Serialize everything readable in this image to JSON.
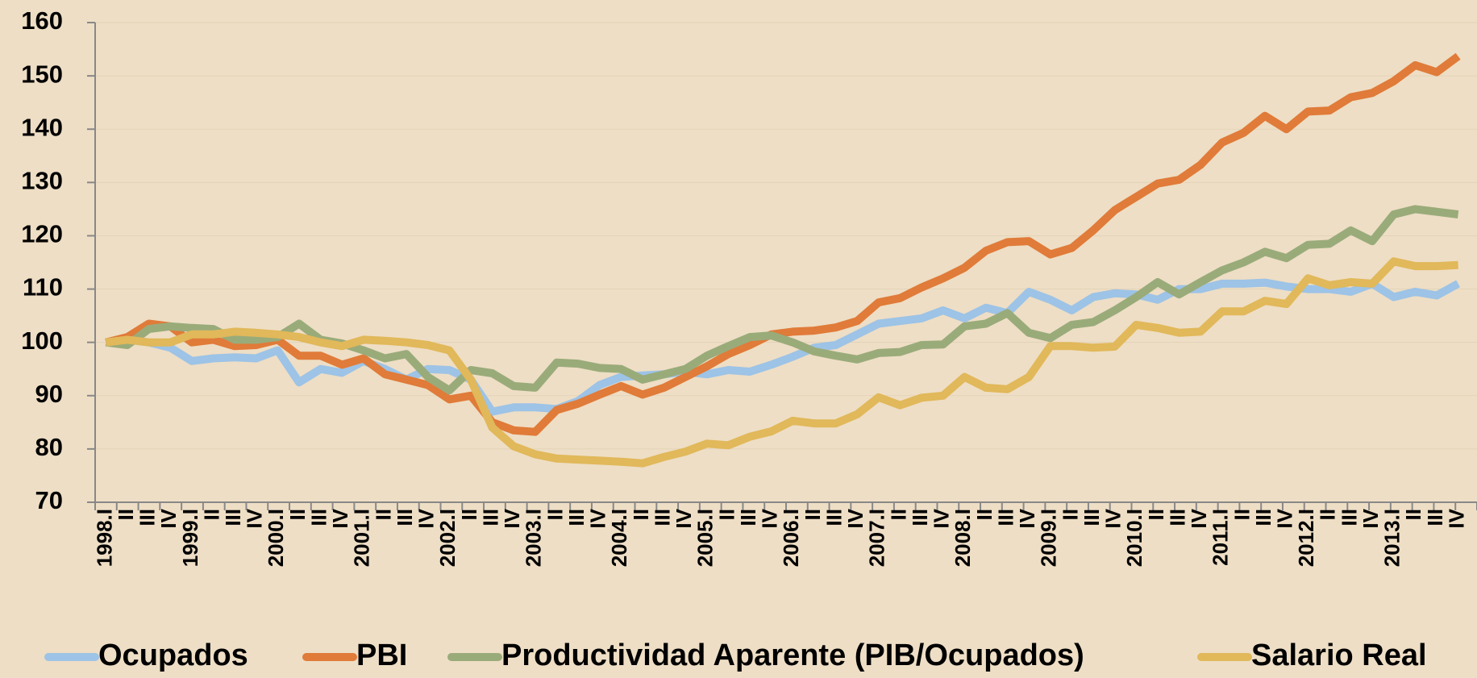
{
  "chart_data": {
    "type": "line",
    "categories": [
      "1998.I",
      "II",
      "III",
      "IV",
      "1999.I",
      "II",
      "III",
      "IV",
      "2000.I",
      "II",
      "III",
      "IV",
      "2001.I",
      "II",
      "III",
      "IV",
      "2002.I",
      "II",
      "III",
      "IV",
      "2003.I",
      "II",
      "III",
      "IV",
      "2004.I",
      "II",
      "III",
      "IV",
      "2005.I",
      "II",
      "III",
      "IV",
      "2006.I",
      "II",
      "III",
      "IV",
      "2007.I",
      "II",
      "III",
      "IV",
      "2008.I",
      "II",
      "III",
      "IV",
      "2009.I",
      "II",
      "III",
      "IV",
      "2010.I",
      "II",
      "III",
      "IV",
      "2011.I",
      "II",
      "III",
      "IV",
      "2012.I",
      "II",
      "III",
      "IV",
      "2013.I",
      "II",
      "III",
      "IV"
    ],
    "series": [
      {
        "name": "Ocupados",
        "color": "#9dc3e6",
        "values": [
          100,
          100.5,
          100,
          99,
          96.5,
          97,
          97.2,
          97,
          98.5,
          92.5,
          95,
          94.3,
          96.5,
          95,
          93,
          95,
          94.8,
          93,
          87,
          87.8,
          87.8,
          87.5,
          89,
          92,
          93.5,
          93.8,
          94,
          94.5,
          94,
          94.8,
          94.5,
          95.8,
          97.3,
          99,
          99.5,
          101.5,
          103.5,
          104,
          104.5,
          106,
          104.5,
          106.5,
          105.5,
          109.5,
          108,
          106,
          108.5,
          109.2,
          109,
          108,
          110,
          110,
          111,
          111,
          111.2,
          110.5,
          110,
          110,
          109.5,
          111,
          108.5,
          109.5,
          108.8,
          111
        ]
      },
      {
        "name": "PBI",
        "color": "#e07b39",
        "values": [
          100,
          101,
          103.5,
          103,
          100,
          100.5,
          99.3,
          99.5,
          100.5,
          97.5,
          97.5,
          95.8,
          97,
          94,
          93,
          92,
          89.3,
          90,
          85,
          83.5,
          83.2,
          87.3,
          88.5,
          90.2,
          91.8,
          90.2,
          91.5,
          93.5,
          95.5,
          97.8,
          99.5,
          101.5,
          102,
          102.2,
          102.8,
          104,
          107.5,
          108.3,
          110.3,
          112,
          114,
          117.2,
          118.8,
          119,
          116.5,
          117.7,
          121,
          124.8,
          127.3,
          129.8,
          130.5,
          133.3,
          137.5,
          139.3,
          142.5,
          140,
          143.3,
          143.5,
          146,
          146.8,
          149,
          152,
          150.7,
          153.7
        ]
      },
      {
        "name": "Productividad Aparente (PIB/Ocupados)",
        "color": "#9aab7a",
        "values": [
          100,
          99.5,
          102.5,
          103,
          102.7,
          102.5,
          100.5,
          100.5,
          101,
          103.5,
          100.5,
          99.8,
          98.5,
          97,
          97.8,
          93.5,
          91,
          94.8,
          94.2,
          91.8,
          91.5,
          96.2,
          96,
          95.2,
          95,
          93,
          94,
          95,
          97.5,
          99.3,
          101,
          101.3,
          100,
          98.3,
          97.5,
          96.8,
          98,
          98.2,
          99.5,
          99.6,
          103,
          103.5,
          105.5,
          101.8,
          100.8,
          103.3,
          103.8,
          106,
          108.5,
          111.3,
          109,
          111.3,
          113.5,
          115,
          117,
          115.8,
          118.3,
          118.5,
          121,
          119,
          124,
          125,
          124.5,
          124
        ]
      },
      {
        "name": "Salario Real",
        "color": "#e1b85a",
        "values": [
          100,
          100.5,
          100,
          100,
          101.5,
          101.5,
          102,
          101.8,
          101.5,
          101,
          100,
          99.3,
          100.5,
          100.3,
          100,
          99.5,
          98.5,
          93,
          84,
          80.5,
          79,
          78.2,
          78,
          77.8,
          77.6,
          77.3,
          78.5,
          79.5,
          81,
          80.7,
          82.3,
          83.3,
          85.3,
          84.8,
          84.8,
          86.5,
          89.7,
          88.2,
          89.6,
          90,
          93.5,
          91.5,
          91.2,
          93.5,
          99.3,
          99.3,
          99,
          99.2,
          103.3,
          102.7,
          101.8,
          102,
          105.8,
          105.8,
          107.8,
          107.2,
          112,
          110.7,
          111.3,
          111,
          115.2,
          114.3,
          114.3,
          114.5
        ]
      }
    ],
    "ylim": [
      70,
      160
    ],
    "yticks": [
      70,
      80,
      90,
      100,
      110,
      120,
      130,
      140,
      150,
      160
    ],
    "grid": true,
    "legend": "bottom"
  }
}
